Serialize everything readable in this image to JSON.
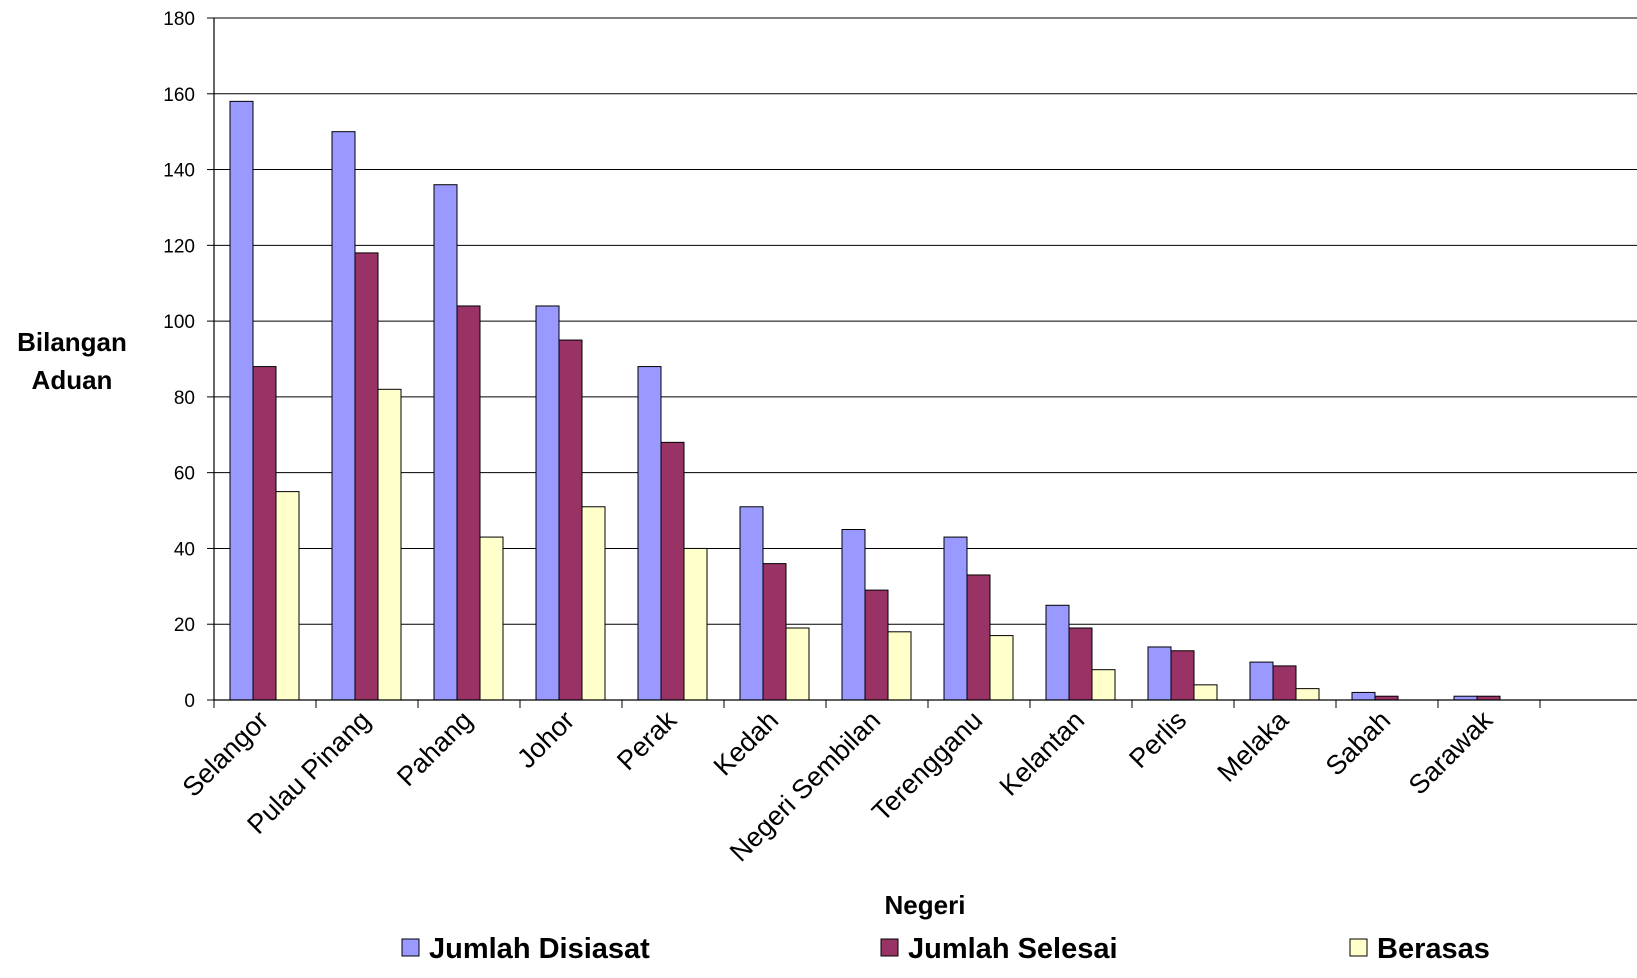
{
  "chart_data": {
    "type": "bar",
    "title": "",
    "xlabel": "Negeri",
    "ylabel_lines": [
      "Bilangan",
      "Aduan"
    ],
    "ylim": [
      0,
      180
    ],
    "yticks": [
      0,
      20,
      40,
      60,
      80,
      100,
      120,
      140,
      160,
      180
    ],
    "grid": true,
    "legend_position": "bottom",
    "categories": [
      "Selangor",
      "Pulau Pinang",
      "Pahang",
      "Johor",
      "Perak",
      "Kedah",
      "Negeri Sembilan",
      "Terengganu",
      "Kelantan",
      "Perlis",
      "Melaka",
      "Sabah",
      "Sarawak"
    ],
    "series": [
      {
        "name": "Jumlah Disiasat",
        "color": "#9999ff",
        "values": [
          158,
          150,
          136,
          104,
          88,
          51,
          45,
          43,
          25,
          14,
          10,
          2,
          1
        ]
      },
      {
        "name": "Jumlah Selesai",
        "color": "#993366",
        "values": [
          88,
          118,
          104,
          95,
          68,
          36,
          29,
          33,
          19,
          13,
          9,
          1,
          1
        ]
      },
      {
        "name": "Berasas",
        "color": "#ffffcc",
        "values": [
          55,
          82,
          43,
          51,
          40,
          19,
          18,
          17,
          8,
          4,
          3,
          0,
          0
        ]
      }
    ]
  }
}
